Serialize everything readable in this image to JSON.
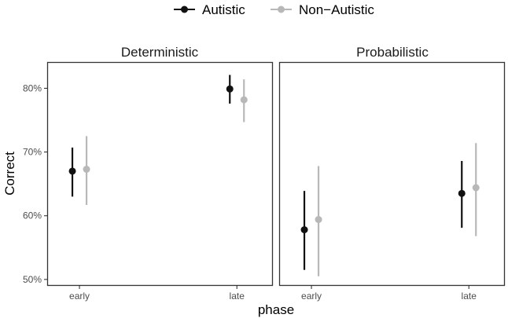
{
  "chart_data": {
    "type": "pointrange",
    "y_label": "Correct",
    "x_label": "phase",
    "ylim": [
      0.49,
      0.84
    ],
    "y_ticks": [
      0.5,
      0.6,
      0.7,
      0.8
    ],
    "y_tick_labels": [
      "50%",
      "60%",
      "70%",
      "80%"
    ],
    "categories": [
      "early",
      "late"
    ],
    "legend": {
      "position": "top",
      "entries": [
        {
          "name": "Autistic",
          "color": "#111111"
        },
        {
          "name": "Non−Autistic",
          "color": "#b8b8b8"
        }
      ]
    },
    "panels": [
      {
        "title": "Deterministic",
        "series": [
          {
            "name": "Autistic",
            "points": [
              {
                "x": "early",
                "y": 0.67,
                "ymin": 0.63,
                "ymax": 0.707
              },
              {
                "x": "late",
                "y": 0.799,
                "ymin": 0.776,
                "ymax": 0.821
              }
            ]
          },
          {
            "name": "Non−Autistic",
            "points": [
              {
                "x": "early",
                "y": 0.673,
                "ymin": 0.617,
                "ymax": 0.725
              },
              {
                "x": "late",
                "y": 0.782,
                "ymin": 0.747,
                "ymax": 0.814
              }
            ]
          }
        ]
      },
      {
        "title": "Probabilistic",
        "series": [
          {
            "name": "Autistic",
            "points": [
              {
                "x": "early",
                "y": 0.578,
                "ymin": 0.515,
                "ymax": 0.639
              },
              {
                "x": "late",
                "y": 0.635,
                "ymin": 0.581,
                "ymax": 0.686
              }
            ]
          },
          {
            "name": "Non−Autistic",
            "points": [
              {
                "x": "early",
                "y": 0.594,
                "ymin": 0.505,
                "ymax": 0.678
              },
              {
                "x": "late",
                "y": 0.644,
                "ymin": 0.568,
                "ymax": 0.714
              }
            ]
          }
        ]
      }
    ]
  }
}
